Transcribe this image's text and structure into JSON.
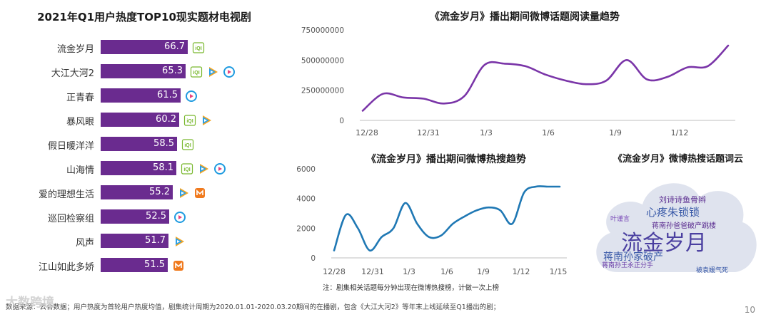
{
  "left_panel": {
    "title": "2021年Q1用户热度TOP10现实题材电视剧",
    "rows": [
      {
        "name": "流金岁月",
        "value": "66.7",
        "platforms": [
          "iqiyi"
        ]
      },
      {
        "name": "大江大河2",
        "value": "65.3",
        "platforms": [
          "iqiyi",
          "tencent",
          "youku"
        ]
      },
      {
        "name": "正青春",
        "value": "61.5",
        "platforms": [
          "youku"
        ]
      },
      {
        "name": "暴风眼",
        "value": "60.2",
        "platforms": [
          "iqiyi",
          "tencent"
        ]
      },
      {
        "name": "假日暖洋洋",
        "value": "58.5",
        "platforms": [
          "iqiyi"
        ]
      },
      {
        "name": "山海情",
        "value": "58.1",
        "platforms": [
          "iqiyi",
          "tencent",
          "youku"
        ]
      },
      {
        "name": "爱的理想生活",
        "value": "55.2",
        "platforms": [
          "tencent",
          "mango"
        ]
      },
      {
        "name": "巡回检察组",
        "value": "52.5",
        "platforms": [
          "youku"
        ]
      },
      {
        "name": "风声",
        "value": "51.7",
        "platforms": [
          "tencent"
        ]
      },
      {
        "name": "江山如此多娇",
        "value": "51.5",
        "platforms": [
          "mango"
        ]
      }
    ]
  },
  "colors": {
    "bar": "#6a2b8f",
    "read_line": "#7a35a8",
    "search_line": "#1f78b4",
    "iqiyi": "#79b82e",
    "tencent_a": "#2aa0e8",
    "tencent_b": "#f5a623",
    "youku": "#1f9be0",
    "mango": "#f07a1e",
    "cloud_bg": "#dfe3ee"
  },
  "chart_data": [
    {
      "type": "bar",
      "title": "2021年Q1用户热度TOP10现实题材电视剧",
      "orientation": "horizontal",
      "categories": [
        "流金岁月",
        "大江大河2",
        "正青春",
        "暴风眼",
        "假日暖洋洋",
        "山海情",
        "爱的理想生活",
        "巡回检察组",
        "风声",
        "江山如此多娇"
      ],
      "values": [
        66.7,
        65.3,
        61.5,
        60.2,
        58.5,
        58.1,
        55.2,
        52.5,
        51.7,
        51.5
      ],
      "xlim": [
        0,
        66.7
      ]
    },
    {
      "type": "line",
      "title": "《流金岁月》播出期间微博话题阅读量趋势",
      "x_ticks": [
        "12/28",
        "12/31",
        "1/3",
        "1/6",
        "1/9",
        "1/12"
      ],
      "y_ticks": [
        "0",
        "250000000",
        "500000000",
        "750000000"
      ],
      "ylim": [
        0,
        750000000
      ],
      "x": [
        0,
        1,
        2,
        3,
        4,
        5,
        6,
        7,
        8,
        9,
        10,
        11,
        12,
        13,
        14,
        15,
        16,
        17,
        18
      ],
      "values": [
        80000000,
        220000000,
        190000000,
        180000000,
        140000000,
        200000000,
        460000000,
        470000000,
        450000000,
        380000000,
        330000000,
        300000000,
        330000000,
        500000000,
        340000000,
        360000000,
        440000000,
        450000000,
        620000000
      ],
      "grid": false
    },
    {
      "type": "line",
      "title": "《流金岁月》播出期间微博热搜趋势",
      "x_ticks": [
        "12/28",
        "12/31",
        "1/3",
        "1/6",
        "1/9",
        "1/12",
        "1/15"
      ],
      "y_ticks": [
        "0",
        "2000",
        "4000",
        "6000"
      ],
      "ylim": [
        0,
        6000
      ],
      "x": [
        0,
        1,
        2,
        3,
        4,
        5,
        6,
        7,
        8,
        9,
        10,
        11,
        12,
        13,
        14,
        15,
        16,
        17,
        18,
        19
      ],
      "values": [
        500,
        2900,
        2000,
        500,
        1400,
        2000,
        3700,
        2300,
        1400,
        1500,
        2300,
        2800,
        3200,
        3400,
        3200,
        2300,
        4400,
        4800,
        4800,
        4800
      ],
      "grid": false,
      "note": "注：剧集相关话题每分钟出现在微博热搜榜，计做一次上榜"
    }
  ],
  "word_cloud": {
    "title": "《流金岁月》微博热搜话题词云",
    "big_words": [
      "流金岁月",
      "蒋南孙家破产",
      "心疼朱锁锁",
      "刘诗诗鱼骨辫",
      "蒋南孙爸爸破产跳楼",
      "叶谨言",
      "被袁媛气死",
      "蒋南孙王永正分手"
    ]
  },
  "footer": {
    "source": "数据来源：云合数据；用户热度为首轮用户热度均值，剧集统计周期为2020.01.01-2020.03.20期间的在播剧，包含《大江大河2》等年末上线延续至Q1播出的剧；",
    "watermark": "大数跨境",
    "page": "10"
  }
}
